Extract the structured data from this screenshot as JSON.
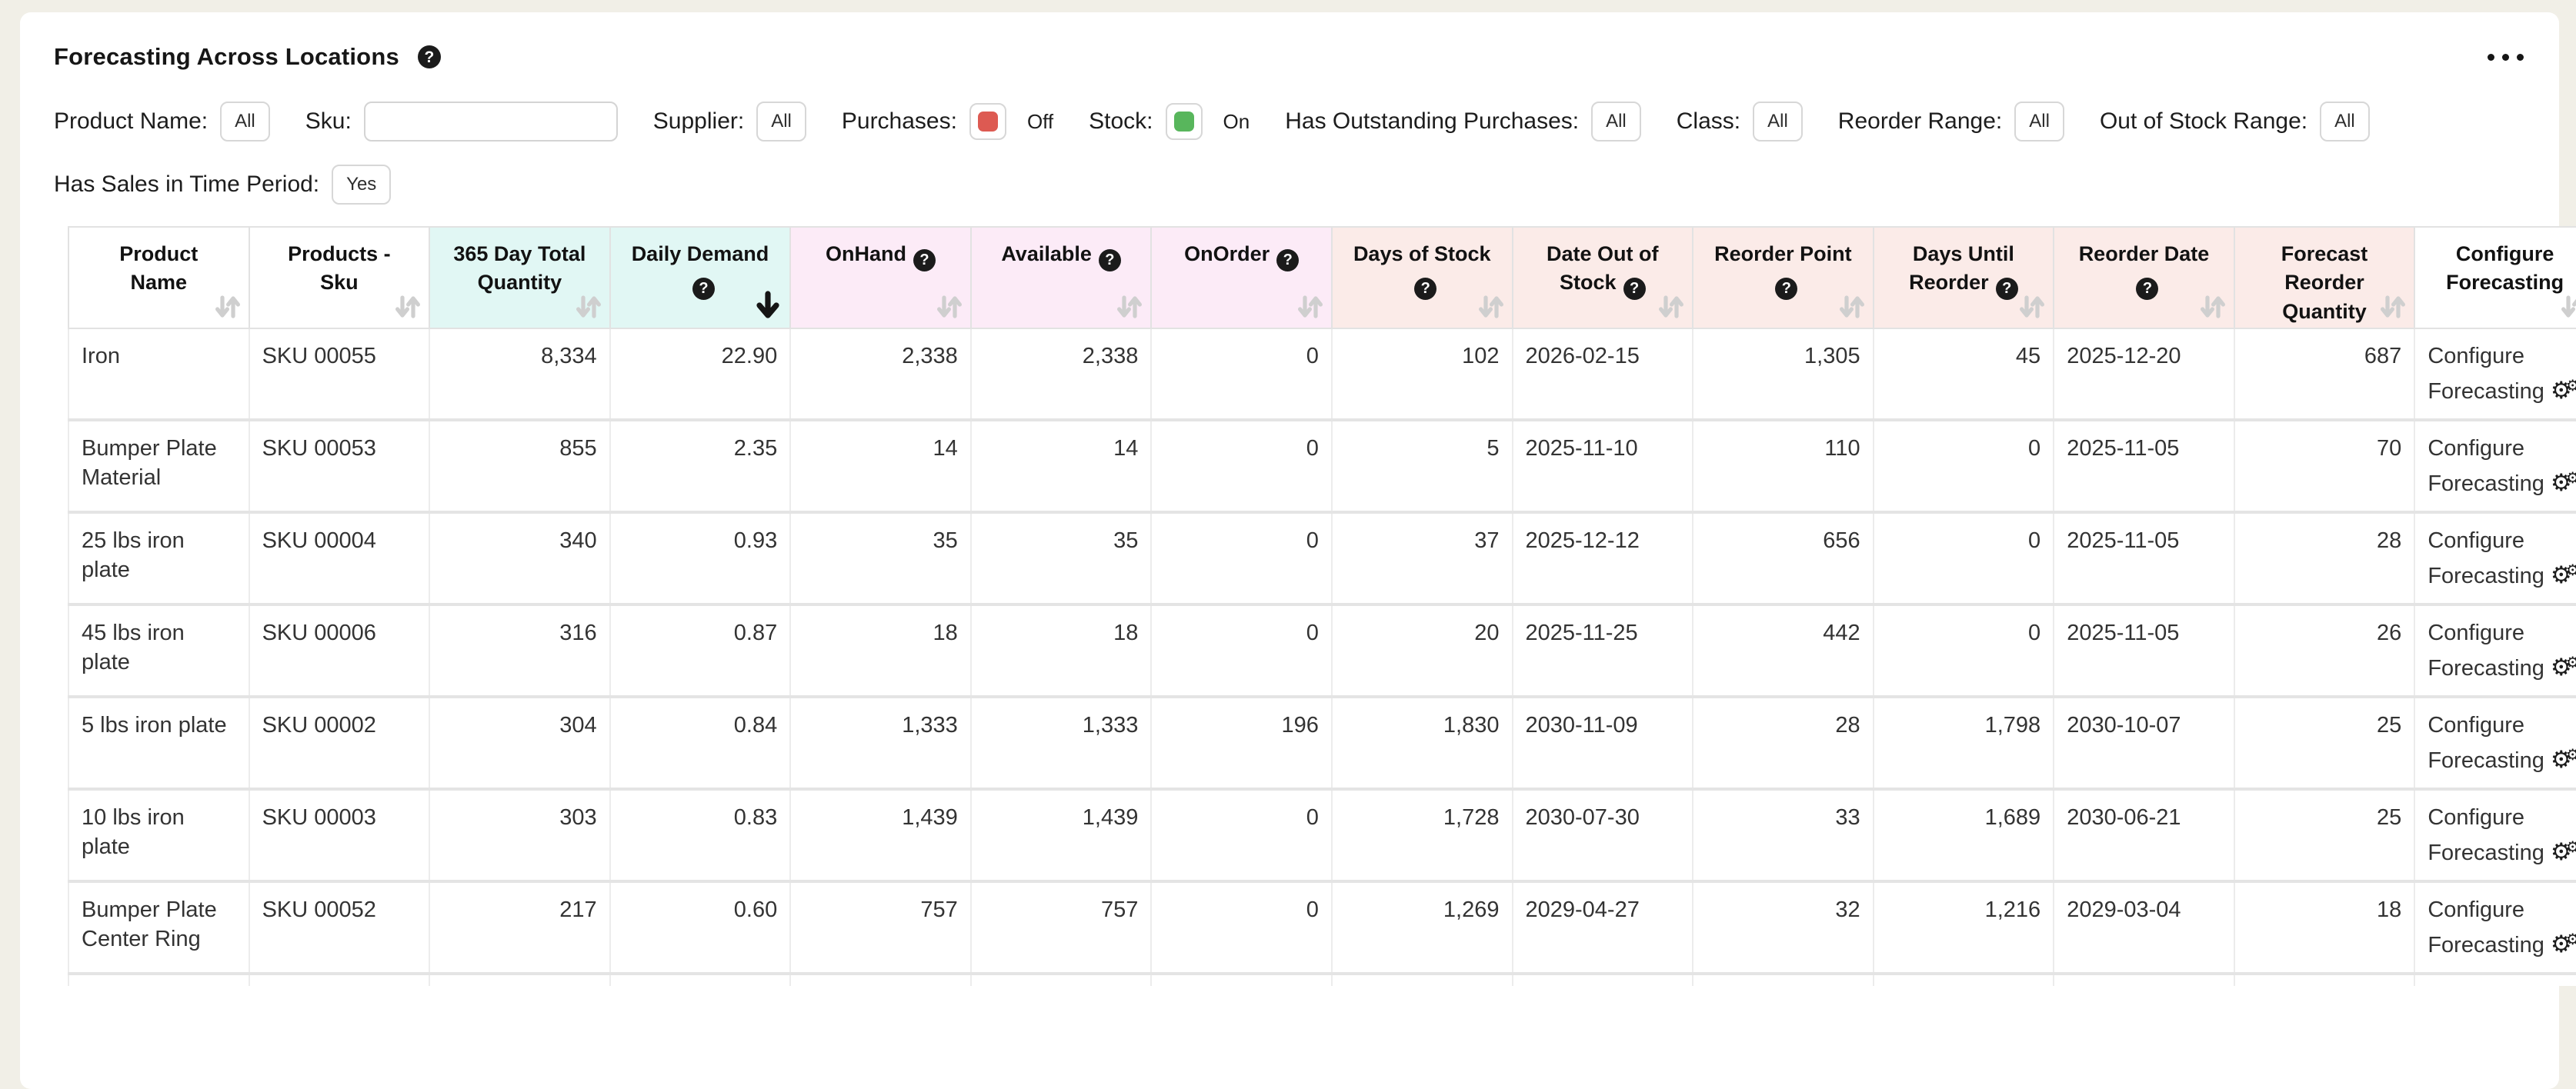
{
  "header": {
    "title": "Forecasting Across Locations",
    "help_icon": "question-circle",
    "menu_icon": "ellipsis-horizontal"
  },
  "colors": {
    "page_background": "#f1efe7",
    "tint_cyan": "#e1f7f4",
    "tint_pink": "#fcebf7",
    "tint_red": "#fbebe8",
    "toggle_off_red": "#dd5a52",
    "toggle_on_green": "#58b65c",
    "sort_idle_gray": "#cfcfcf",
    "sort_active_black": "#151515"
  },
  "filters": {
    "row1": [
      {
        "id": "product-name",
        "label": "Product Name:",
        "type": "button",
        "value": "All"
      },
      {
        "id": "sku",
        "label": "Sku:",
        "type": "input",
        "value": "",
        "placeholder": ""
      },
      {
        "id": "supplier",
        "label": "Supplier:",
        "type": "button",
        "value": "All"
      },
      {
        "id": "purchases",
        "label": "Purchases:",
        "type": "toggle",
        "value": "Off",
        "swatch_color": "#dd5a52"
      },
      {
        "id": "stock",
        "label": "Stock:",
        "type": "toggle",
        "value": "On",
        "swatch_color": "#58b65c"
      },
      {
        "id": "has-outstanding-purchases",
        "label": "Has Outstanding Purchases:",
        "type": "button",
        "value": "All"
      },
      {
        "id": "class",
        "label": "Class:",
        "type": "button",
        "value": "All"
      },
      {
        "id": "reorder-range",
        "label": "Reorder Range:",
        "type": "button",
        "value": "All"
      },
      {
        "id": "out-of-stock-range",
        "label": "Out of Stock Range:",
        "type": "button",
        "value": "All"
      }
    ],
    "row2": [
      {
        "id": "has-sales-in-time-period",
        "label": "Has Sales in Time Period:",
        "type": "button",
        "value": "Yes"
      }
    ]
  },
  "table": {
    "columns": [
      {
        "id": "product-name",
        "label": "Product\nName",
        "tint": "none",
        "help": false,
        "help_break": false,
        "sort": "neutral",
        "align": "left"
      },
      {
        "id": "products-sku",
        "label": "Products -\nSku",
        "tint": "none",
        "help": false,
        "help_break": false,
        "sort": "neutral",
        "align": "left"
      },
      {
        "id": "365-day-total-quantity",
        "label": "365 Day Total\nQuantity",
        "tint": "cyan",
        "help": false,
        "help_break": false,
        "sort": "neutral",
        "align": "right"
      },
      {
        "id": "daily-demand",
        "label": "Daily Demand",
        "tint": "cyan",
        "help": true,
        "help_break": true,
        "sort": "desc",
        "align": "right"
      },
      {
        "id": "onhand",
        "label": "OnHand",
        "tint": "pink",
        "help": true,
        "help_break": false,
        "sort": "neutral",
        "align": "right"
      },
      {
        "id": "available",
        "label": "Available",
        "tint": "pink",
        "help": true,
        "help_break": false,
        "sort": "neutral",
        "align": "right"
      },
      {
        "id": "onorder",
        "label": "OnOrder",
        "tint": "pink",
        "help": true,
        "help_break": false,
        "sort": "neutral",
        "align": "right"
      },
      {
        "id": "days-of-stock",
        "label": "Days of Stock",
        "tint": "red",
        "help": true,
        "help_break": true,
        "sort": "neutral",
        "align": "right"
      },
      {
        "id": "date-out-of-stock",
        "label": "Date Out of\nStock",
        "tint": "red",
        "help": true,
        "help_break": false,
        "sort": "neutral",
        "align": "left"
      },
      {
        "id": "reorder-point",
        "label": "Reorder Point",
        "tint": "red",
        "help": true,
        "help_break": true,
        "sort": "neutral",
        "align": "right"
      },
      {
        "id": "days-until-reorder",
        "label": "Days Until\nReorder",
        "tint": "red",
        "help": true,
        "help_break": false,
        "sort": "neutral",
        "align": "right"
      },
      {
        "id": "reorder-date",
        "label": "Reorder Date",
        "tint": "red",
        "help": true,
        "help_break": true,
        "sort": "neutral",
        "align": "left"
      },
      {
        "id": "forecast-reorder-quantity",
        "label": "Forecast\nReorder\nQuantity",
        "tint": "red",
        "help": false,
        "help_break": false,
        "sort": "neutral",
        "align": "right"
      },
      {
        "id": "configure-forecasting",
        "label": "Configure\nForecasting",
        "tint": "none",
        "help": false,
        "help_break": false,
        "sort": "neutral",
        "align": "left"
      }
    ],
    "configure_label": "Configure Forecasting",
    "rows": [
      {
        "cells": [
          "Iron",
          "SKU 00055",
          "8,334",
          "22.90",
          "2,338",
          "2,338",
          "0",
          "102",
          "2026-02-15",
          "1,305",
          "45",
          "2025-12-20",
          "687"
        ]
      },
      {
        "cells": [
          "Bumper Plate Material",
          "SKU 00053",
          "855",
          "2.35",
          "14",
          "14",
          "0",
          "5",
          "2025-11-10",
          "110",
          "0",
          "2025-11-05",
          "70"
        ]
      },
      {
        "cells": [
          "25 lbs iron plate",
          "SKU 00004",
          "340",
          "0.93",
          "35",
          "35",
          "0",
          "37",
          "2025-12-12",
          "656",
          "0",
          "2025-11-05",
          "28"
        ]
      },
      {
        "cells": [
          "45 lbs iron plate",
          "SKU 00006",
          "316",
          "0.87",
          "18",
          "18",
          "0",
          "20",
          "2025-11-25",
          "442",
          "0",
          "2025-11-05",
          "26"
        ]
      },
      {
        "cells": [
          "5 lbs iron plate",
          "SKU 00002",
          "304",
          "0.84",
          "1,333",
          "1,333",
          "196",
          "1,830",
          "2030-11-09",
          "28",
          "1,798",
          "2030-10-07",
          "25"
        ]
      },
      {
        "cells": [
          "10 lbs iron plate",
          "SKU 00003",
          "303",
          "0.83",
          "1,439",
          "1,439",
          "0",
          "1,728",
          "2030-07-30",
          "33",
          "1,689",
          "2030-06-21",
          "25"
        ]
      },
      {
        "cells": [
          "Bumper Plate Center Ring",
          "SKU 00052",
          "217",
          "0.60",
          "757",
          "757",
          "0",
          "1,269",
          "2029-04-27",
          "32",
          "1,216",
          "2029-03-04",
          "18"
        ]
      }
    ]
  }
}
